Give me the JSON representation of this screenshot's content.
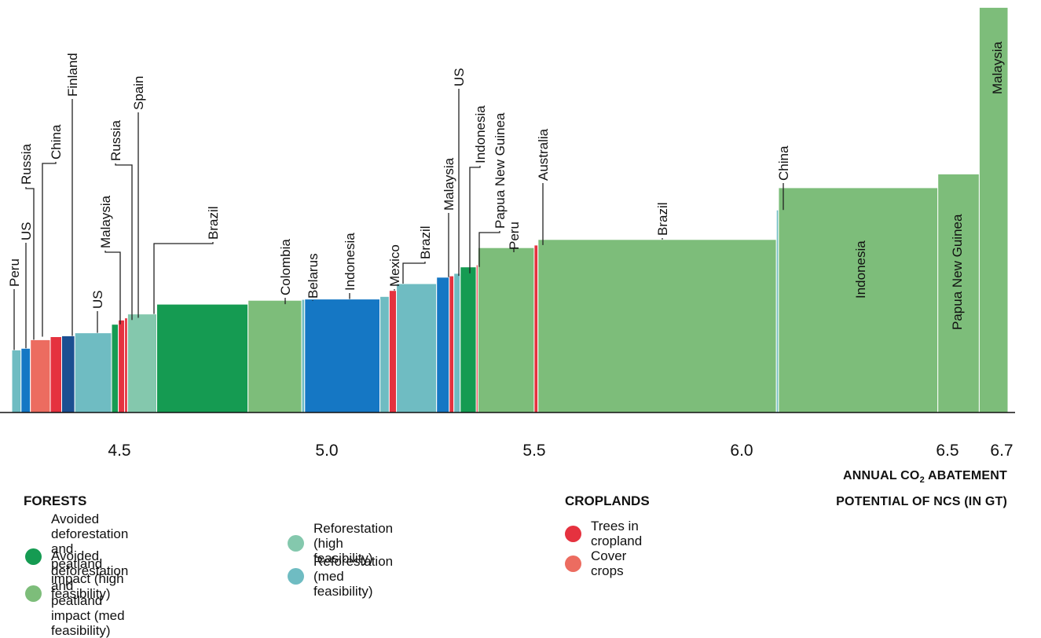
{
  "chart_data": {
    "type": "bar",
    "chart_style": "marginal abatement curve (variable-width bars)",
    "x_axis": {
      "label_line1_prefix": "ANNUAL CO",
      "label_sub": "2",
      "label_line1_suffix": " ABATEMENT",
      "label_line2": "POTENTIAL OF NCS (IN GT)",
      "ticks": [
        "4.5",
        "5.0",
        "5.5",
        "6.0",
        "6.5",
        "6.7"
      ],
      "tick_values": [
        4.5,
        5.0,
        5.5,
        6.0,
        6.5,
        6.7
      ],
      "range": [
        4.28,
        6.72
      ]
    },
    "y_axis": {
      "visible": false
    },
    "legend": {
      "forests_title": "FORESTS",
      "croplands_title": "CROPLANDS",
      "items": [
        {
          "key": "adh",
          "label_line1": "Avoided deforestation and",
          "label_line2": "peatland impact (high feasibility)",
          "color": "#159b52"
        },
        {
          "key": "adm",
          "label_line1": "Avoided deforestation and",
          "label_line2": "peatland impact (med feasibility)",
          "color": "#7dbd7a"
        },
        {
          "key": "rh",
          "label_line1": "Reforestation (high feasibility)",
          "label_line2": "",
          "color": "#84c8ad"
        },
        {
          "key": "rm",
          "label_line1": "Reforestation (med feasibility)",
          "label_line2": "",
          "color": "#6fbcc2"
        },
        {
          "key": "tc",
          "label_line1": "Trees in cropland",
          "label_line2": "",
          "color": "#e5323f"
        },
        {
          "key": "cc",
          "label_line1": "Cover crops",
          "label_line2": "",
          "color": "#ec6c60"
        }
      ],
      "extra_colors": {
        "forest_blue": "#1577c4",
        "forest_navy": "#1b4f91"
      }
    },
    "bars": [
      {
        "x0": 4.279,
        "x1": 4.301,
        "h": 0.146,
        "color": "#6fbcc2",
        "country": "Peru"
      },
      {
        "x0": 4.301,
        "x1": 4.323,
        "h": 0.15,
        "color": "#1577c4",
        "country": "US"
      },
      {
        "x0": 4.323,
        "x1": 4.37,
        "h": 0.17,
        "color": "#ec6c60",
        "country": "Russia"
      },
      {
        "x0": 4.37,
        "x1": 4.397,
        "h": 0.177,
        "color": "#e5323f",
        "country": "China"
      },
      {
        "x0": 4.397,
        "x1": 4.428,
        "h": 0.179,
        "color": "#1b4f91",
        "country": "Finland"
      },
      {
        "x0": 4.428,
        "x1": 4.515,
        "h": 0.186,
        "color": "#6fbcc2",
        "country": "US"
      },
      {
        "x0": 4.515,
        "x1": 4.531,
        "h": 0.206,
        "color": "#159b52",
        "country": "Malaysia"
      },
      {
        "x0": 4.531,
        "x1": 4.546,
        "h": 0.216,
        "color": "#e5323f",
        "country": "Russia"
      },
      {
        "x0": 4.546,
        "x1": 4.553,
        "h": 0.221,
        "color": "#e5323f",
        "country": "Spain"
      },
      {
        "x0": 4.553,
        "x1": 4.622,
        "h": 0.23,
        "color": "#84c8ad",
        "country": "Brazil"
      },
      {
        "x0": 4.622,
        "x1": 4.838,
        "h": 0.253,
        "color": "#159b52",
        "country": "Colombia"
      },
      {
        "x0": 4.838,
        "x1": 4.965,
        "h": 0.262,
        "color": "#7dbd7a",
        "country": "Belarus"
      },
      {
        "x0": 4.965,
        "x1": 4.972,
        "h": 0.264,
        "color": "#6fbcc2",
        "country": ""
      },
      {
        "x0": 4.972,
        "x1": 5.15,
        "h": 0.265,
        "color": "#1577c4",
        "country": "Indonesia"
      },
      {
        "x0": 5.15,
        "x1": 5.172,
        "h": 0.271,
        "color": "#6fbcc2",
        "country": ""
      },
      {
        "x0": 5.172,
        "x1": 5.189,
        "h": 0.285,
        "color": "#e5323f",
        "country": "Mexico"
      },
      {
        "x0": 5.189,
        "x1": 5.284,
        "h": 0.301,
        "color": "#6fbcc2",
        "country": "Brazil"
      },
      {
        "x0": 5.284,
        "x1": 5.314,
        "h": 0.316,
        "color": "#1577c4",
        "country": "Malaysia"
      },
      {
        "x0": 5.314,
        "x1": 5.325,
        "h": 0.319,
        "color": "#e5323f",
        "country": "US"
      },
      {
        "x0": 5.325,
        "x1": 5.34,
        "h": 0.325,
        "color": "#6fbcc2",
        "country": "Indonesia"
      },
      {
        "x0": 5.34,
        "x1": 5.378,
        "h": 0.34,
        "color": "#159b52",
        "country": "Papua New Guinea"
      },
      {
        "x0": 5.378,
        "x1": 5.382,
        "h": 0.345,
        "color": "#e5323f",
        "country": ""
      },
      {
        "x0": 5.382,
        "x1": 5.515,
        "h": 0.385,
        "color": "#7dbd7a",
        "country": "Peru"
      },
      {
        "x0": 5.515,
        "x1": 5.524,
        "h": 0.391,
        "color": "#e5323f",
        "country": "Australia"
      },
      {
        "x0": 5.524,
        "x1": 6.088,
        "h": 0.404,
        "color": "#7dbd7a",
        "country": "Brazil"
      },
      {
        "x0": 6.088,
        "x1": 6.093,
        "h": 0.473,
        "color": "#6fbcc2",
        "country": "China"
      },
      {
        "x0": 6.093,
        "x1": 6.47,
        "h": 0.525,
        "color": "#7dbd7a",
        "country": "Indonesia"
      },
      {
        "x0": 6.47,
        "x1": 6.568,
        "h": 0.557,
        "color": "#7dbd7a",
        "country": "Papua New Guinea"
      },
      {
        "x0": 6.568,
        "x1": 6.636,
        "h": 0.946,
        "color": "#7dbd7a",
        "country": "Malaysia"
      }
    ]
  }
}
